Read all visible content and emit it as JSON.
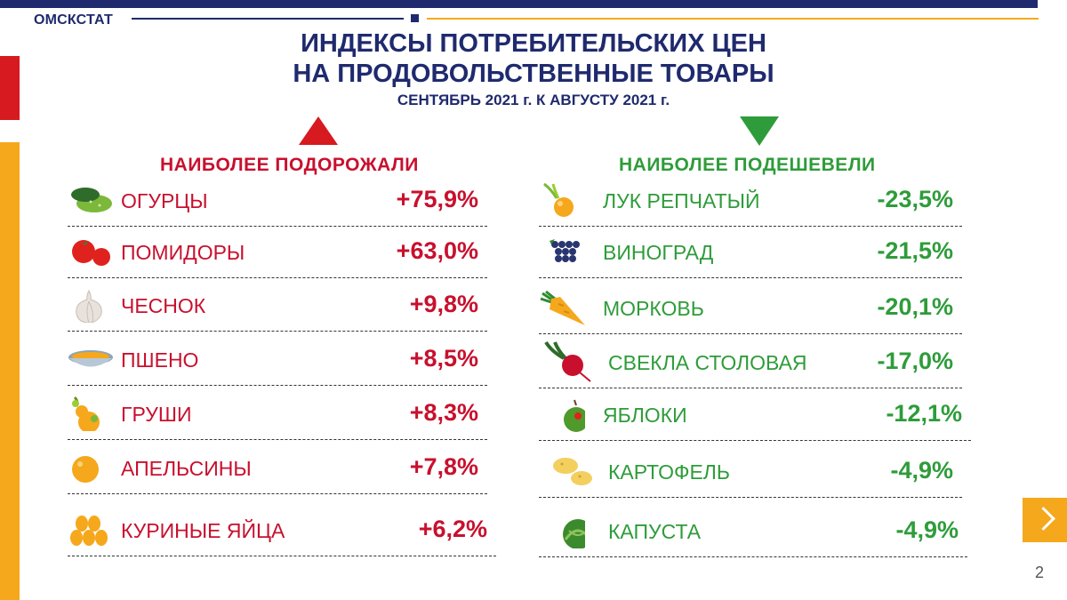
{
  "header": {
    "org": "ОМСКСТАТ",
    "title_line1": "ИНДЕКСЫ ПОТРЕБИТЕЛЬСКИХ ЦЕН",
    "title_line2": "НА ПРОДОВОЛЬСТВЕННЫЕ ТОВАРЫ",
    "subtitle": "СЕНТЯБРЬ 2021 г. К АВГУСТУ 2021 г."
  },
  "colors": {
    "navy": "#1f2a6e",
    "red": "#c8102e",
    "green": "#2e9c3a",
    "orange": "#f5a81c"
  },
  "increased": {
    "heading": "НАИБОЛЕЕ ПОДОРОЖАЛИ",
    "items": [
      {
        "name": "ОГУРЦЫ",
        "value": "+75,9%",
        "icon": "cucumber-icon"
      },
      {
        "name": "ПОМИДОРЫ",
        "value": "+63,0%",
        "icon": "tomato-icon"
      },
      {
        "name": "ЧЕСНОК",
        "value": "+9,8%",
        "icon": "garlic-icon"
      },
      {
        "name": "ПШЕНО",
        "value": "+8,5%",
        "icon": "millet-bowl-icon"
      },
      {
        "name": "ГРУШИ",
        "value": "+8,3%",
        "icon": "pear-icon"
      },
      {
        "name": "АПЕЛЬСИНЫ",
        "value": "+7,8%",
        "icon": "orange-icon"
      },
      {
        "name": "КУРИНЫЕ ЯЙЦА",
        "value": "+6,2%",
        "icon": "eggs-icon"
      }
    ]
  },
  "decreased": {
    "heading": "НАИБОЛЕЕ ПОДЕШЕВЕЛИ",
    "items": [
      {
        "name": "ЛУК РЕПЧАТЫЙ",
        "value": "-23,5%",
        "icon": "onion-icon"
      },
      {
        "name": "ВИНОГРАД",
        "value": "-21,5%",
        "icon": "grapes-icon"
      },
      {
        "name": "МОРКОВЬ",
        "value": "-20,1%",
        "icon": "carrot-icon"
      },
      {
        "name": "СВЕКЛА СТОЛОВАЯ",
        "value": "-17,0%",
        "icon": "beet-icon"
      },
      {
        "name": "ЯБЛОКИ",
        "value": "-12,1%",
        "icon": "apple-icon"
      },
      {
        "name": "КАРТОФЕЛЬ",
        "value": "-4,9%",
        "icon": "potato-icon"
      },
      {
        "name": "КАПУСТА",
        "value": "-4,9%",
        "icon": "cabbage-icon"
      }
    ]
  },
  "footer": {
    "page_number": "2"
  }
}
